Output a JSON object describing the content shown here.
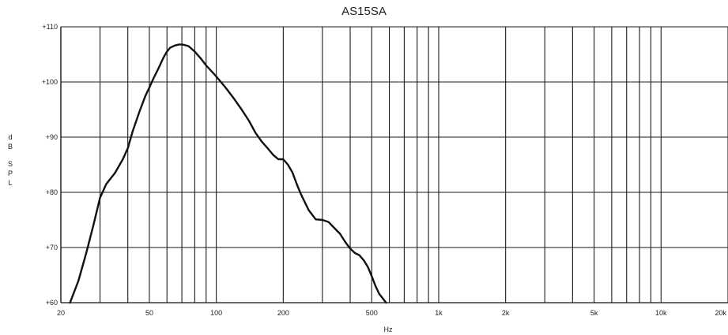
{
  "chart_data": {
    "type": "line",
    "title": "AS15SA",
    "xlabel": "Hz",
    "ylabel": "dB SPL",
    "ylabel_letters": [
      "d",
      "B",
      "",
      "S",
      "P",
      "L"
    ],
    "x_scale": "log",
    "xlim": [
      20,
      20000
    ],
    "ylim": [
      60,
      110
    ],
    "x_ticks": [
      {
        "value": 20,
        "label": "20"
      },
      {
        "value": 50,
        "label": "50"
      },
      {
        "value": 100,
        "label": "100"
      },
      {
        "value": 200,
        "label": "200"
      },
      {
        "value": 500,
        "label": "500"
      },
      {
        "value": 1000,
        "label": "1k"
      },
      {
        "value": 2000,
        "label": "2k"
      },
      {
        "value": 5000,
        "label": "5k"
      },
      {
        "value": 10000,
        "label": "10k"
      },
      {
        "value": 20000,
        "label": "20k"
      }
    ],
    "y_ticks": [
      {
        "value": 60,
        "label": "+60"
      },
      {
        "value": 70,
        "label": "+70"
      },
      {
        "value": 80,
        "label": "+80"
      },
      {
        "value": 90,
        "label": "+90"
      },
      {
        "value": 100,
        "label": "+100"
      },
      {
        "value": 110,
        "label": "+110"
      }
    ],
    "grid": true,
    "legend": "none",
    "line_color": "#111111",
    "series": [
      {
        "x": [
          22,
          24,
          26,
          28,
          30,
          32,
          35,
          38,
          40,
          42,
          45,
          48,
          50,
          52,
          55,
          58,
          60,
          62,
          65,
          68,
          70,
          72,
          75,
          80,
          85,
          90,
          100,
          110,
          120,
          130,
          140,
          150,
          160,
          170,
          180,
          190,
          200,
          210,
          220,
          230,
          240,
          260,
          280,
          300,
          320,
          340,
          360,
          380,
          400,
          420,
          440,
          460,
          480,
          500,
          520,
          540,
          560,
          580
        ],
        "y": [
          60,
          64,
          69,
          74,
          79,
          81.5,
          83.5,
          86,
          88,
          91,
          94.5,
          97.5,
          99,
          100.5,
          102.5,
          104.5,
          105.5,
          106.2,
          106.6,
          106.8,
          106.8,
          106.7,
          106.5,
          105.5,
          104.3,
          103,
          101,
          99,
          97,
          95,
          93,
          90.8,
          89.2,
          88,
          86.8,
          86,
          86,
          85,
          83.6,
          81.5,
          79.7,
          76.8,
          75.1,
          75,
          74.6,
          73.5,
          72.5,
          71,
          69.8,
          69,
          68.6,
          67.7,
          66.5,
          64.8,
          63,
          61.6,
          60.8,
          60
        ]
      }
    ]
  }
}
